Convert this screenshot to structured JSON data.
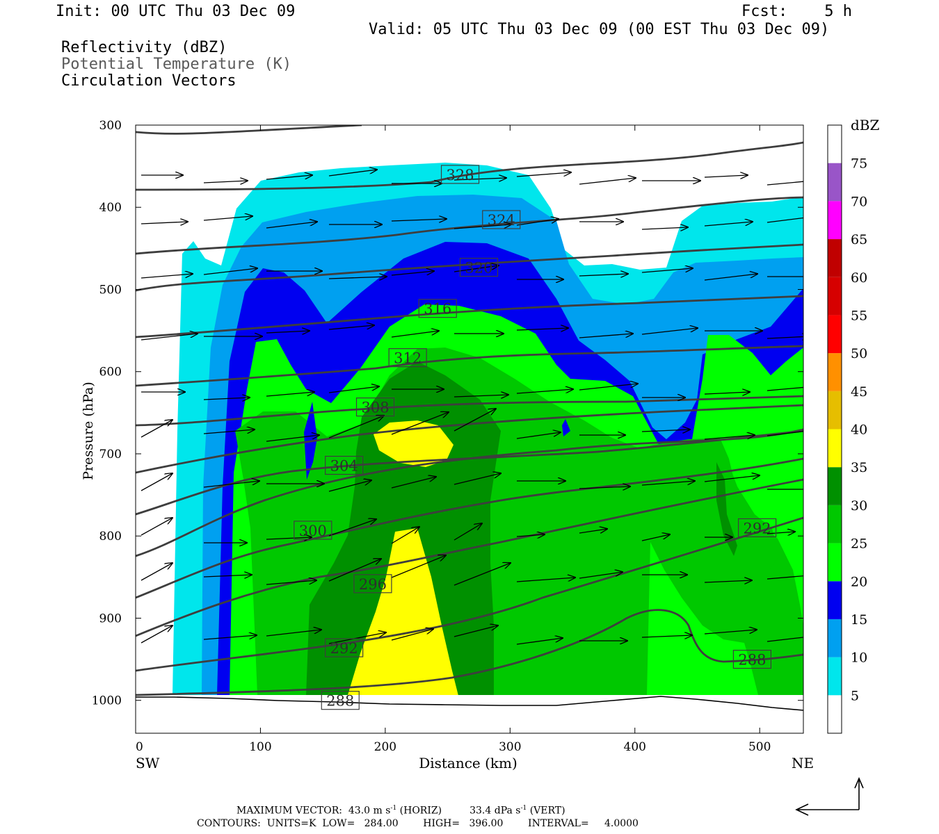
{
  "header": {
    "init": "Init: 00 UTC Thu 03 Dec 09",
    "fcst": "Fcst:    5 h",
    "valid": "Valid: 05 UTC Thu 03 Dec 09 (00 EST Thu 03 Dec 09)",
    "field1": "Reflectivity (dBZ)",
    "field2": "Potential Temperature (K)",
    "field3": "Circulation Vectors"
  },
  "chart_data": {
    "type": "cross-section",
    "x_axis": {
      "label": "Distance (km)",
      "ticks": [
        "0",
        "100",
        "200",
        "300",
        "400",
        "500"
      ],
      "range": [
        0,
        535
      ],
      "left_end": "SW",
      "right_end": "NE"
    },
    "y_axis": {
      "label": "Pressure (hPa)",
      "ticks": [
        "300",
        "400",
        "500",
        "600",
        "700",
        "800",
        "900",
        "1000"
      ],
      "range": [
        300,
        1040
      ]
    },
    "colorbar": {
      "title": "dBZ",
      "levels": [
        "5",
        "10",
        "15",
        "20",
        "25",
        "30",
        "35",
        "40",
        "45",
        "50",
        "55",
        "60",
        "65",
        "70",
        "75"
      ],
      "colors": [
        "#ffffff",
        "#00e6ec",
        "#00a0f0",
        "#0000f0",
        "#00ff00",
        "#00c800",
        "#009000",
        "#ffff00",
        "#e6be00",
        "#ff9000",
        "#ff0000",
        "#d60000",
        "#c00000",
        "#ff00ff",
        "#9955c8"
      ]
    },
    "reflectivity_bands": [
      {
        "dbz_min": 5,
        "color": "#00e6ec"
      },
      {
        "dbz_min": 10,
        "color": "#00a0f0"
      },
      {
        "dbz_min": 15,
        "color": "#0000f0"
      },
      {
        "dbz_min": 20,
        "color": "#00ff00"
      },
      {
        "dbz_min": 25,
        "color": "#00c800"
      },
      {
        "dbz_min": 30,
        "color": "#009000"
      },
      {
        "dbz_min": 35,
        "color": "#ffff00"
      }
    ],
    "theta_contour_labels": [
      {
        "value": "328",
        "x": 260,
        "p": 360
      },
      {
        "value": "324",
        "x": 293,
        "p": 415
      },
      {
        "value": "320",
        "x": 275,
        "p": 473
      },
      {
        "value": "316",
        "x": 242,
        "p": 523
      },
      {
        "value": "312",
        "x": 218,
        "p": 583
      },
      {
        "value": "308",
        "x": 192,
        "p": 643
      },
      {
        "value": "304",
        "x": 167,
        "p": 714
      },
      {
        "value": "300",
        "x": 142,
        "p": 793
      },
      {
        "value": "296",
        "x": 190,
        "p": 858
      },
      {
        "value": "292",
        "x": 167,
        "p": 936
      },
      {
        "value": "288",
        "x": 164,
        "p": 1000
      },
      {
        "value": "292",
        "x": 498,
        "p": 790
      },
      {
        "value": "288",
        "x": 494,
        "p": 950
      }
    ]
  },
  "footer": {
    "line1a": "MAXIMUM VECTOR:  43.0 m s",
    "line1b": " (HORIZ)         33.4 dPa s",
    "line1c": " (VERT)",
    "sup": "-1",
    "line2": "CONTOURS:  UNITS=K  LOW=   284.00        HIGH=   396.00        INTERVAL=     4.0000"
  }
}
